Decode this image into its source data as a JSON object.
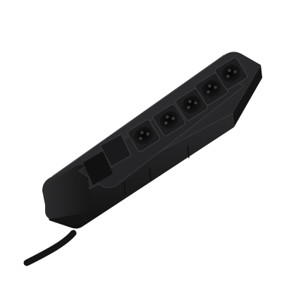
{
  "image": {
    "subject": "power-strip",
    "socket_count": 5,
    "switch_count": 1,
    "colors": {
      "background": "#ffffff",
      "body": "#1f1f21",
      "body_top": "#2b2b2d",
      "socket_well": "#0d0d0e",
      "cable": "#151515"
    }
  }
}
